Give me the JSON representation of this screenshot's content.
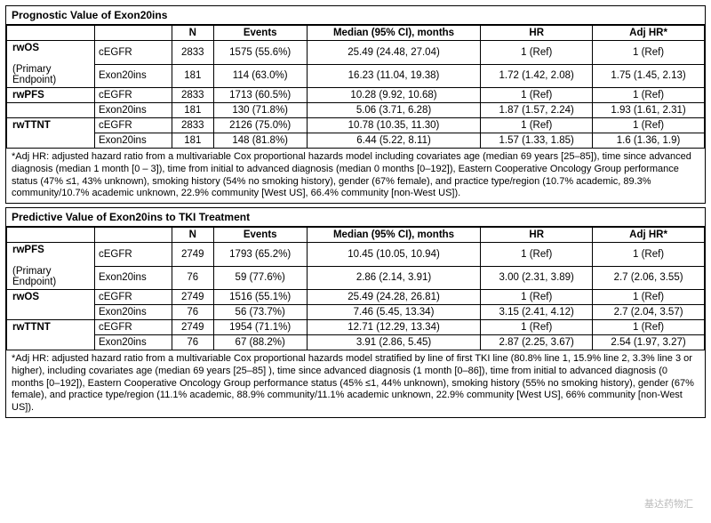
{
  "section1": {
    "title": "Prognostic Value of Exon20ins",
    "headers": [
      "N",
      "Events",
      "Median (95% CI), months",
      "HR",
      "Adj HR*"
    ],
    "primary_label": "(Primary Endpoint)",
    "groups": [
      {
        "name": "rwOS",
        "rows": [
          {
            "label": "cEGFR",
            "n": "2833",
            "events": "1575 (55.6%)",
            "median": "25.49 (24.48, 27.04)",
            "hr": "1 (Ref)",
            "adjhr": "1 (Ref)"
          },
          {
            "label": "Exon20ins",
            "n": "181",
            "events": "114 (63.0%)",
            "median": "16.23 (11.04, 19.38)",
            "hr": "1.72 (1.42, 2.08)",
            "adjhr": "1.75 (1.45, 2.13)"
          }
        ]
      },
      {
        "name": "rwPFS",
        "rows": [
          {
            "label": "cEGFR",
            "n": "2833",
            "events": "1713 (60.5%)",
            "median": "10.28 (9.92, 10.68)",
            "hr": "1 (Ref)",
            "adjhr": "1 (Ref)"
          },
          {
            "label": "Exon20ins",
            "n": "181",
            "events": "130 (71.8%)",
            "median": "5.06 (3.71, 6.28)",
            "hr": "1.87 (1.57, 2.24)",
            "adjhr": "1.93 (1.61, 2.31)"
          }
        ]
      },
      {
        "name": "rwTTNT",
        "rows": [
          {
            "label": "cEGFR",
            "n": "2833",
            "events": "2126 (75.0%)",
            "median": "10.78 (10.35, 11.30)",
            "hr": "1 (Ref)",
            "adjhr": "1 (Ref)"
          },
          {
            "label": "Exon20ins",
            "n": "181",
            "events": "148 (81.8%)",
            "median": "6.44 (5.22, 8.11)",
            "hr": "1.57 (1.33, 1.85)",
            "adjhr": "1.6 (1.36, 1.9)"
          }
        ]
      }
    ],
    "footnote": "*Adj HR: adjusted hazard ratio from a multivariable Cox proportional hazards model including covariates age (median 69 years [25–85]), time since advanced diagnosis (median 1 month [0 – 3]), time from initial to advanced diagnosis (median 0 months [0–192]), Eastern Cooperative Oncology Group performance status (47% ≤1, 43% unknown), smoking history (54% no smoking history), gender (67% female), and practice type/region (10.7% academic, 89.3% community/10.7% academic unknown, 22.9% community [West US], 66.4% community [non-West US])."
  },
  "section2": {
    "title": "Predictive Value of Exon20ins to TKI Treatment",
    "headers": [
      "N",
      "Events",
      "Median (95% CI), months",
      "HR",
      "Adj HR*"
    ],
    "primary_label": "(Primary Endpoint)",
    "groups": [
      {
        "name": "rwPFS",
        "rows": [
          {
            "label": "cEGFR",
            "n": "2749",
            "events": "1793 (65.2%)",
            "median": "10.45 (10.05, 10.94)",
            "hr": "1 (Ref)",
            "adjhr": "1 (Ref)"
          },
          {
            "label": "Exon20ins",
            "n": "76",
            "events": "59 (77.6%)",
            "median": "2.86 (2.14, 3.91)",
            "hr": "3.00 (2.31, 3.89)",
            "adjhr": "2.7 (2.06, 3.55)"
          }
        ]
      },
      {
        "name": "rwOS",
        "rows": [
          {
            "label": "cEGFR",
            "n": "2749",
            "events": "1516 (55.1%)",
            "median": "25.49 (24.28, 26.81)",
            "hr": "1 (Ref)",
            "adjhr": "1 (Ref)"
          },
          {
            "label": "Exon20ins",
            "n": "76",
            "events": "56 (73.7%)",
            "median": "7.46 (5.45, 13.34)",
            "hr": "3.15 (2.41, 4.12)",
            "adjhr": "2.7 (2.04, 3.57)"
          }
        ]
      },
      {
        "name": "rwTTNT",
        "rows": [
          {
            "label": "cEGFR",
            "n": "2749",
            "events": "1954 (71.1%)",
            "median": "12.71 (12.29, 13.34)",
            "hr": "1 (Ref)",
            "adjhr": "1 (Ref)"
          },
          {
            "label": "Exon20ins",
            "n": "76",
            "events": "67 (88.2%)",
            "median": "3.91 (2.86, 5.45)",
            "hr": "2.87 (2.25, 3.67)",
            "adjhr": "2.54 (1.97, 3.27)"
          }
        ]
      }
    ],
    "footnote": "*Adj HR: adjusted hazard ratio from a multivariable Cox proportional hazards model stratified by line of first TKI line (80.8% line 1, 15.9% line 2, 3.3% line 3 or higher), including covariates age (median 69 years [25–85] ), time since advanced diagnosis (1 month [0–86]), time from initial to advanced diagnosis (0 months [0–192]), Eastern Cooperative Oncology Group performance status (45% ≤1, 44% unknown), smoking history (55% no smoking history), gender (67% female), and practice type/region (11.1% academic, 88.9% community/11.1% academic unknown, 22.9% community [West US], 66% community [non-West US])."
  },
  "watermark": "基达药物汇"
}
